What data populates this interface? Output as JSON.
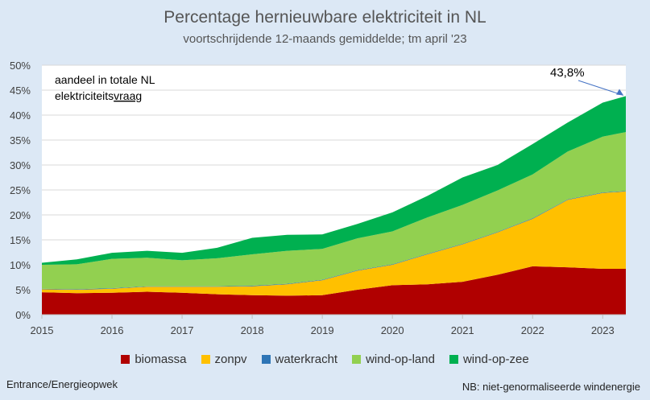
{
  "chart_data": {
    "type": "area",
    "title": "Percentage hernieuwbare elektriciteit in NL",
    "subtitle": "voortschrijdende 12-maands gemiddelde; tm april '23",
    "inner_label_1": "aandeel in totale NL",
    "inner_label_2_prefix": "elektriciteits",
    "inner_label_2_underlined": "vraag",
    "annotation": "43,8%",
    "ylim": [
      0,
      50
    ],
    "yticks": [
      "0%",
      "5%",
      "10%",
      "15%",
      "20%",
      "25%",
      "30%",
      "35%",
      "40%",
      "45%",
      "50%"
    ],
    "xlim": [
      2015.0,
      2023.33
    ],
    "xticks": [
      "2015",
      "2016",
      "2017",
      "2018",
      "2019",
      "2020",
      "2021",
      "2022",
      "2023"
    ],
    "x": [
      2015.0,
      2015.5,
      2016.0,
      2016.5,
      2017.0,
      2017.5,
      2018.0,
      2018.5,
      2019.0,
      2019.5,
      2020.0,
      2020.5,
      2021.0,
      2021.5,
      2022.0,
      2022.5,
      2023.0,
      2023.33
    ],
    "series": [
      {
        "name": "biomassa",
        "color": "#b00000",
        "values": [
          4.5,
          4.3,
          4.4,
          4.6,
          4.4,
          4.1,
          3.9,
          3.8,
          3.9,
          5.0,
          5.9,
          6.1,
          6.6,
          8.0,
          9.7,
          9.5,
          9.2,
          9.2
        ]
      },
      {
        "name": "zonpv",
        "color": "#ffc000",
        "values": [
          0.6,
          0.7,
          0.8,
          1.0,
          1.2,
          1.5,
          1.8,
          2.3,
          3.0,
          3.8,
          4.1,
          6.0,
          7.5,
          8.5,
          9.5,
          13.5,
          15.2,
          15.5
        ]
      },
      {
        "name": "waterkracht",
        "color": "#2e75b6",
        "values": [
          0.1,
          0.1,
          0.1,
          0.1,
          0.1,
          0.1,
          0.1,
          0.1,
          0.1,
          0.1,
          0.1,
          0.1,
          0.1,
          0.1,
          0.1,
          0.1,
          0.1,
          0.1
        ]
      },
      {
        "name": "wind-op-land",
        "color": "#92d050",
        "values": [
          4.8,
          5.0,
          5.9,
          5.7,
          5.2,
          5.6,
          6.3,
          6.6,
          6.2,
          6.4,
          6.6,
          7.3,
          7.8,
          8.3,
          8.8,
          9.6,
          11.2,
          11.8
        ]
      },
      {
        "name": "wind-op-zee",
        "color": "#00b050",
        "values": [
          0.4,
          1.0,
          1.2,
          1.4,
          1.5,
          2.1,
          3.3,
          3.2,
          2.9,
          2.9,
          3.8,
          4.3,
          5.5,
          5.1,
          6.1,
          5.8,
          6.8,
          7.2
        ]
      }
    ]
  },
  "source": "Entrance/Energieopwek",
  "note": "NB: niet-genormaliseerde windenergie"
}
